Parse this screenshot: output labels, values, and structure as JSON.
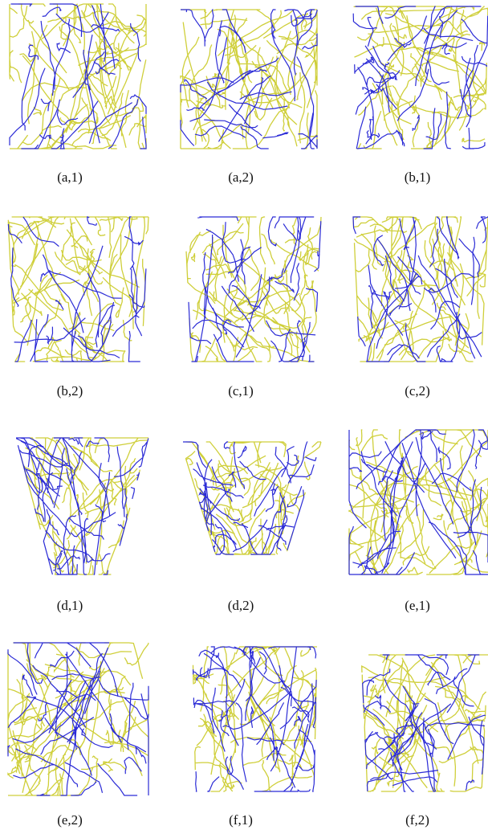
{
  "panels": [
    {
      "label": "(a,1)"
    },
    {
      "label": "(a,2)"
    },
    {
      "label": "(b,1)"
    },
    {
      "label": "(b,2)"
    },
    {
      "label": "(c,1)"
    },
    {
      "label": "(c,2)"
    },
    {
      "label": "(d,1)"
    },
    {
      "label": "(d,2)"
    },
    {
      "label": "(e,1)"
    },
    {
      "label": "(e,2)"
    },
    {
      "label": "(f,1)"
    },
    {
      "label": "(f,2)"
    }
  ]
}
